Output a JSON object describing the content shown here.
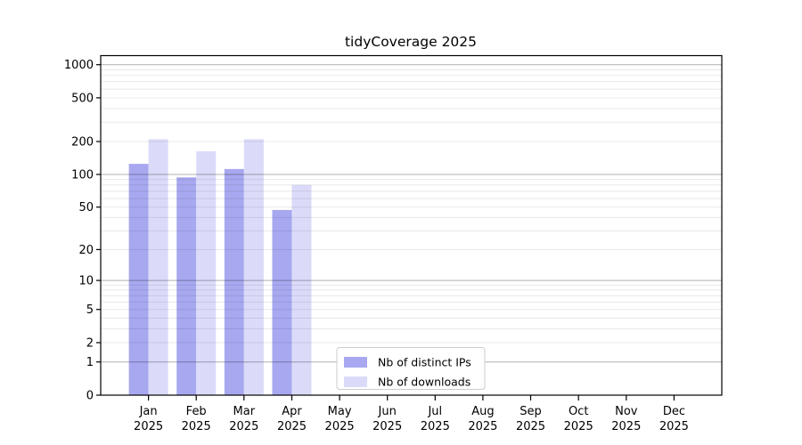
{
  "figure_title": "tidyCoverage 2025",
  "chart_data": {
    "type": "bar",
    "title": "tidyCoverage 2025",
    "categories": [
      "Jan 2025",
      "Feb 2025",
      "Mar 2025",
      "Apr 2025",
      "May 2025",
      "Jun 2025",
      "Jul 2025",
      "Aug 2025",
      "Sep 2025",
      "Oct 2025",
      "Nov 2025",
      "Dec 2025"
    ],
    "month_labels": [
      "Jan",
      "Feb",
      "Mar",
      "Apr",
      "May",
      "Jun",
      "Jul",
      "Aug",
      "Sep",
      "Oct",
      "Nov",
      "Dec"
    ],
    "year_label": "2025",
    "series": [
      {
        "name": "Nb of distinct IPs",
        "color": "#a8a8f0",
        "values": [
          125,
          94,
          112,
          47,
          0,
          0,
          0,
          0,
          0,
          0,
          0,
          0
        ]
      },
      {
        "name": "Nb of downloads",
        "color": "#dbdbf9",
        "values": [
          210,
          163,
          210,
          80,
          0,
          0,
          0,
          0,
          0,
          0,
          0,
          0
        ]
      }
    ],
    "y_axis": {
      "scale": "log1p",
      "range": [
        0,
        1000
      ],
      "tick_values": [
        0,
        1,
        2,
        5,
        10,
        20,
        50,
        100,
        200,
        500,
        1000
      ],
      "major_grid_values": [
        1,
        10,
        100,
        1000
      ],
      "minor_grid_values": [
        2,
        3,
        4,
        5,
        6,
        7,
        8,
        9,
        20,
        30,
        40,
        50,
        60,
        70,
        80,
        90,
        200,
        300,
        400,
        500,
        600,
        700,
        800,
        900
      ]
    },
    "legend": {
      "position": "bottom-center-inside",
      "entries": [
        "Nb of distinct IPs",
        "Nb of downloads"
      ]
    },
    "grid": true,
    "colors": {
      "major_grid": "#b1b1b1",
      "minor_grid": "#e8e8e8",
      "axis": "#000000",
      "background": "#ffffff",
      "legend_border": "#cccccc"
    }
  }
}
